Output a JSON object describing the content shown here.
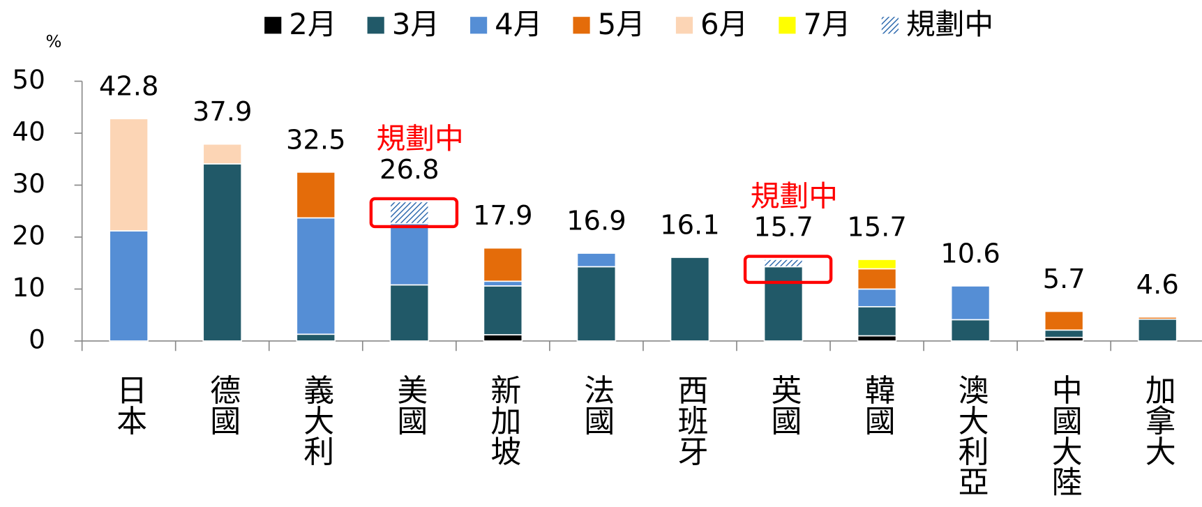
{
  "chart_data": {
    "type": "stacked_bar",
    "y_label": "%",
    "categories": [
      "日本",
      "德國",
      "義大利",
      "美國",
      "新加坡",
      "法國",
      "西班牙",
      "英國",
      "韓國",
      "澳大利亞",
      "中國大陸",
      "加拿大"
    ],
    "series": [
      {
        "name": "2月",
        "color": "#000000",
        "values": [
          null,
          null,
          null,
          null,
          1.2,
          null,
          null,
          null,
          1.0,
          null,
          0.7,
          null
        ]
      },
      {
        "name": "3月",
        "color": "#215968",
        "values": [
          null,
          34.1,
          1.3,
          10.8,
          9.4,
          14.3,
          16.1,
          14.3,
          5.6,
          4.1,
          1.4,
          4.2
        ]
      },
      {
        "name": "4月",
        "color": "#558ed5",
        "values": [
          21.2,
          null,
          22.4,
          11.8,
          0.9,
          2.6,
          null,
          null,
          3.4,
          6.5,
          null,
          null
        ]
      },
      {
        "name": "5月",
        "color": "#e46c0a",
        "values": [
          null,
          null,
          8.8,
          null,
          6.4,
          null,
          null,
          null,
          3.9,
          null,
          3.6,
          0.4
        ]
      },
      {
        "name": "6月",
        "color": "#fcd5b5",
        "values": [
          21.6,
          3.8,
          null,
          null,
          null,
          null,
          null,
          null,
          null,
          null,
          null,
          null
        ]
      },
      {
        "name": "7月",
        "color": "#ffff00",
        "values": [
          null,
          null,
          null,
          null,
          null,
          null,
          null,
          null,
          1.8,
          null,
          null,
          null
        ]
      },
      {
        "name": "規劃中",
        "color": "#1f5fa8",
        "pattern": "hatch",
        "values": [
          null,
          null,
          null,
          4.2,
          null,
          null,
          null,
          1.4,
          null,
          null,
          null,
          null
        ]
      }
    ],
    "totals": [
      42.8,
      37.9,
      32.5,
      26.8,
      17.9,
      16.9,
      16.1,
      15.7,
      15.7,
      10.6,
      5.7,
      4.6
    ],
    "annotations": [
      "規劃中",
      "規劃中"
    ],
    "annotation_color": "#ff0000",
    "ylim": [
      0,
      50
    ],
    "yticks": [
      0,
      10,
      20,
      30,
      40,
      50
    ]
  }
}
